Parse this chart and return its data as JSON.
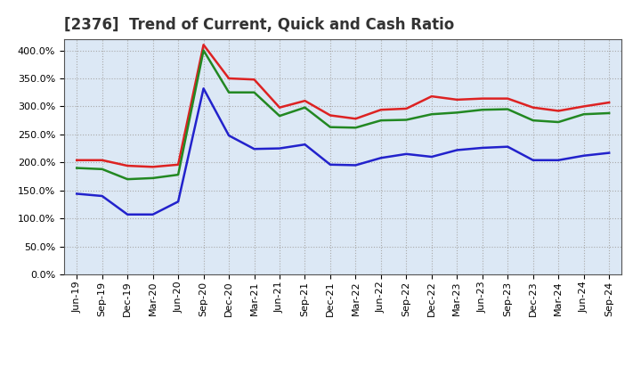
{
  "title": "[2376]  Trend of Current, Quick and Cash Ratio",
  "labels": [
    "Jun-19",
    "Sep-19",
    "Dec-19",
    "Mar-20",
    "Jun-20",
    "Sep-20",
    "Dec-20",
    "Mar-21",
    "Jun-21",
    "Sep-21",
    "Dec-21",
    "Mar-22",
    "Jun-22",
    "Sep-22",
    "Dec-22",
    "Mar-23",
    "Jun-23",
    "Sep-23",
    "Dec-23",
    "Mar-24",
    "Jun-24",
    "Sep-24"
  ],
  "current_ratio": [
    204,
    204,
    194,
    192,
    196,
    410,
    350,
    348,
    298,
    310,
    284,
    278,
    294,
    296,
    318,
    312,
    314,
    314,
    298,
    292,
    300,
    307
  ],
  "quick_ratio": [
    190,
    188,
    170,
    172,
    178,
    400,
    325,
    325,
    283,
    298,
    263,
    262,
    275,
    276,
    286,
    289,
    294,
    295,
    275,
    272,
    286,
    288
  ],
  "cash_ratio": [
    144,
    140,
    107,
    107,
    130,
    332,
    248,
    224,
    225,
    232,
    196,
    195,
    208,
    215,
    210,
    222,
    226,
    228,
    204,
    204,
    212,
    217
  ],
  "current_color": "#dd2222",
  "quick_color": "#228822",
  "cash_color": "#2222cc",
  "ylim": [
    0,
    420
  ],
  "yticks": [
    0,
    50,
    100,
    150,
    200,
    250,
    300,
    350,
    400
  ],
  "bg_color": "#ffffff",
  "plot_bg_color": "#dce8f5",
  "grid_color": "#aaaaaa",
  "line_width": 1.8,
  "title_fontsize": 12,
  "legend_fontsize": 9.5,
  "tick_fontsize": 8
}
